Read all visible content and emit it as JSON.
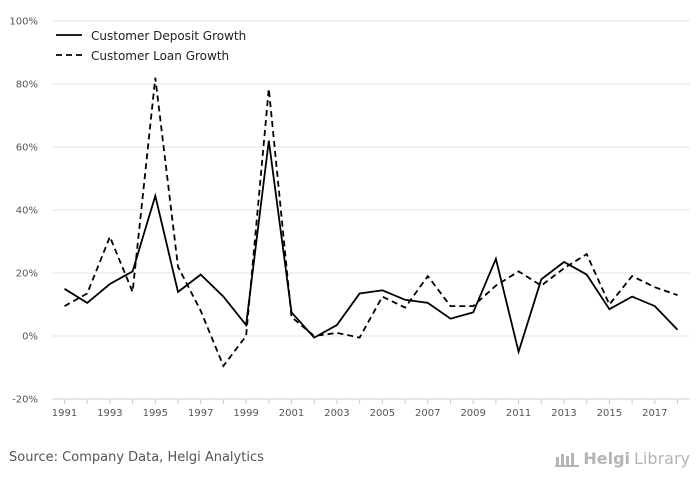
{
  "chart_data": {
    "type": "line",
    "title": "",
    "xlabel": "",
    "ylabel": "",
    "ylim": [
      -20,
      100
    ],
    "y_ticks": [
      -20,
      0,
      20,
      40,
      60,
      80,
      100
    ],
    "y_tick_labels": [
      "-20%",
      "0%",
      "20%",
      "40%",
      "60%",
      "80%",
      "100%"
    ],
    "x": [
      1991,
      1992,
      1993,
      1994,
      1995,
      1996,
      1997,
      1998,
      1999,
      2000,
      2001,
      2002,
      2003,
      2004,
      2005,
      2006,
      2007,
      2008,
      2009,
      2010,
      2011,
      2012,
      2013,
      2014,
      2015,
      2016,
      2017,
      2018
    ],
    "x_tick_labels": [
      "1991",
      "1993",
      "1995",
      "1997",
      "1999",
      "2001",
      "2003",
      "2005",
      "2007",
      "2009",
      "2011",
      "2013",
      "2015",
      "2017"
    ],
    "grid": true,
    "legend_position": "top-left",
    "series": [
      {
        "name": "Customer Deposit Growth",
        "style": "solid",
        "color": "#000000",
        "values": [
          15,
          10.5,
          16.5,
          20.5,
          44.5,
          14,
          19.5,
          12.5,
          3.5,
          62,
          7.5,
          -0.5,
          3.5,
          13.5,
          14.5,
          11.5,
          10.5,
          5.5,
          7.5,
          24.5,
          -5,
          18,
          23.5,
          19.5,
          8.5,
          12.5,
          9.5,
          2
        ]
      },
      {
        "name": "Customer Loan Growth",
        "style": "dashed",
        "color": "#000000",
        "values": [
          9.5,
          13.5,
          31.5,
          14,
          82,
          22,
          8,
          -9.5,
          0,
          78.5,
          6,
          0,
          1,
          -0.5,
          12.5,
          9,
          19,
          9.5,
          9.5,
          16,
          20.5,
          16,
          21.5,
          26,
          10,
          19,
          15.5,
          13
        ]
      }
    ]
  },
  "source": "Source: Company Data, Helgi Analytics",
  "logo": {
    "text_strong": "Helgi",
    "text_light": "Library"
  }
}
